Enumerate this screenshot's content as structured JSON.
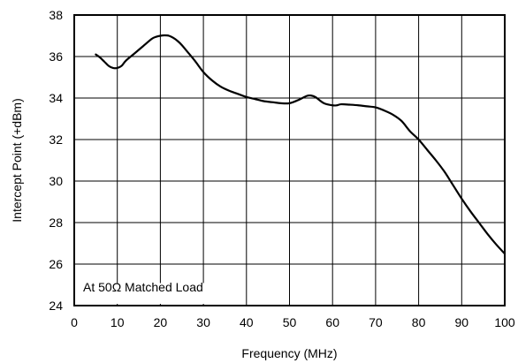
{
  "chart_data": {
    "type": "line",
    "title": "",
    "xlabel": "Frequency (MHz)",
    "ylabel": "Intercept Point (+dBm)",
    "xlim": [
      0,
      100
    ],
    "ylim": [
      24,
      38
    ],
    "x_ticks": [
      0,
      10,
      20,
      30,
      40,
      50,
      60,
      70,
      80,
      90,
      100
    ],
    "y_ticks": [
      24,
      26,
      28,
      30,
      32,
      34,
      36,
      38
    ],
    "grid": true,
    "annotations": [
      {
        "text": "At 50Ω Matched Load"
      }
    ],
    "series": [
      {
        "color": "#000000",
        "x": [
          5,
          6,
          7,
          8,
          9,
          10,
          11,
          12,
          14,
          16,
          18,
          19,
          20,
          21,
          22,
          23,
          24,
          25,
          26,
          28,
          30,
          32,
          34,
          36,
          38,
          40,
          42,
          44,
          46,
          48,
          50,
          52,
          54,
          55,
          56,
          58,
          60,
          61,
          62,
          64,
          66,
          68,
          70,
          72,
          74,
          76,
          78,
          80,
          82,
          84,
          86,
          88,
          90,
          92,
          94,
          96,
          98,
          100
        ],
        "y": [
          36.1,
          35.95,
          35.75,
          35.55,
          35.45,
          35.45,
          35.55,
          35.8,
          36.15,
          36.5,
          36.85,
          36.95,
          37.0,
          37.02,
          37.0,
          36.9,
          36.75,
          36.55,
          36.3,
          35.8,
          35.25,
          34.85,
          34.55,
          34.35,
          34.2,
          34.05,
          33.95,
          33.85,
          33.8,
          33.75,
          33.75,
          33.9,
          34.1,
          34.12,
          34.05,
          33.75,
          33.65,
          33.65,
          33.7,
          33.68,
          33.65,
          33.6,
          33.55,
          33.4,
          33.2,
          32.9,
          32.4,
          32.0,
          31.5,
          31.0,
          30.45,
          29.8,
          29.15,
          28.55,
          28.0,
          27.45,
          26.95,
          26.5
        ]
      }
    ]
  }
}
